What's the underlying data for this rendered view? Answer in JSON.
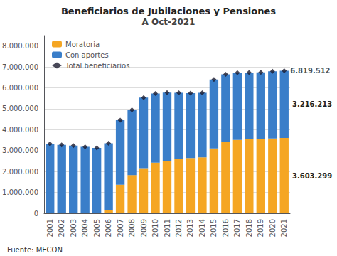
{
  "chart_data": {
    "type": "bar",
    "title": "Beneficiarios de Jubilaciones y Pensiones",
    "subtitle": "A Oct-2021",
    "categories": [
      "2001",
      "2002",
      "2003",
      "2004",
      "2005",
      "2006",
      "2007",
      "2008",
      "2009",
      "2010",
      "2011",
      "2012",
      "2013",
      "2014",
      "2015",
      "2016",
      "2017",
      "2018",
      "2019",
      "2020",
      "2021"
    ],
    "series": [
      {
        "name": "Moratoria",
        "type": "bar",
        "color": "#F5A623",
        "values": [
          0,
          0,
          0,
          0,
          0,
          150000,
          1370000,
          1830000,
          2160000,
          2420000,
          2510000,
          2590000,
          2640000,
          2680000,
          3100000,
          3430000,
          3510000,
          3570000,
          3570000,
          3580000,
          3603299
        ]
      },
      {
        "name": "Con aportes",
        "type": "bar",
        "color": "#3A7EC9",
        "values": [
          3320000,
          3270000,
          3240000,
          3180000,
          3130000,
          3200000,
          3080000,
          3120000,
          3370000,
          3310000,
          3260000,
          3170000,
          3110000,
          3080000,
          3300000,
          3220000,
          3210000,
          3160000,
          3170000,
          3210000,
          3216213
        ]
      },
      {
        "name": "Total beneficiarios",
        "type": "scatter",
        "marker": "diamond",
        "color": "#1a1a2e",
        "values": [
          3320000,
          3270000,
          3240000,
          3180000,
          3130000,
          3350000,
          4450000,
          4950000,
          5530000,
          5730000,
          5770000,
          5760000,
          5750000,
          5760000,
          6400000,
          6650000,
          6720000,
          6730000,
          6740000,
          6790000,
          6819512
        ]
      }
    ],
    "stacked": true,
    "ylim": [
      0,
      8500000
    ],
    "yticks": [
      0,
      {
        "value": 1000000,
        "label": "1.000.000"
      },
      {
        "value": 2000000,
        "label": "2.000.000"
      },
      {
        "value": 3000000,
        "label": "3.000.000"
      },
      {
        "value": 4000000,
        "label": "4.000.000"
      },
      {
        "value": 5000000,
        "label": "5.000.000"
      },
      {
        "value": 6000000,
        "label": "6.000.000"
      },
      {
        "value": 7000000,
        "label": "7.000.000"
      },
      {
        "value": 8000000,
        "label": "8.000.000"
      }
    ],
    "grid": true,
    "legend": "upper left",
    "annotations": [
      {
        "text": "6.819.512",
        "series": "Total beneficiarios",
        "category": "2021"
      },
      {
        "text": "3.216.213",
        "series": "Con aportes",
        "category": "2021"
      },
      {
        "text": "3.603.299",
        "series": "Moratoria",
        "category": "2021"
      }
    ],
    "source": "Fuente: MECON"
  }
}
